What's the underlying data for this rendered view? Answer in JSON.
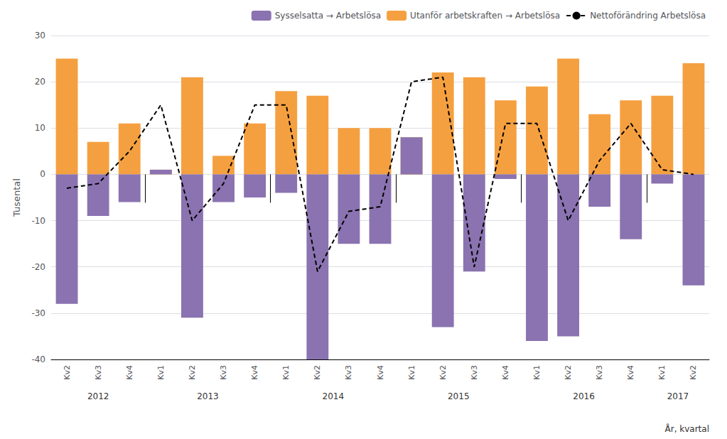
{
  "chart_data": {
    "type": "bar",
    "categories": [
      "Kv2",
      "Kv3",
      "Kv4",
      "Kv1",
      "Kv2",
      "Kv3",
      "Kv4",
      "Kv1",
      "Kv2",
      "Kv3",
      "Kv4",
      "Kv1",
      "Kv2",
      "Kv3",
      "Kv4",
      "Kv1",
      "Kv2",
      "Kv3",
      "Kv4",
      "Kv1",
      "Kv2"
    ],
    "year_groups": [
      {
        "year": "2012",
        "indices": [
          0,
          1,
          2
        ]
      },
      {
        "year": "2013",
        "indices": [
          3,
          4,
          5,
          6
        ]
      },
      {
        "year": "2014",
        "indices": [
          7,
          8,
          9,
          10
        ]
      },
      {
        "year": "2015",
        "indices": [
          11,
          12,
          13,
          14
        ]
      },
      {
        "year": "2016",
        "indices": [
          15,
          16,
          17,
          18
        ]
      },
      {
        "year": "2017",
        "indices": [
          19,
          20
        ]
      }
    ],
    "series": [
      {
        "name": "Sysselsatta → Arbetslösa",
        "type": "bar",
        "color": "#8A73B0",
        "values": [
          -28,
          -9,
          -6,
          1,
          -31,
          -6,
          -5,
          -4,
          -40,
          -15,
          -15,
          8,
          -33,
          -21,
          -1,
          -36,
          -35,
          -7,
          -14,
          -2,
          -24
        ]
      },
      {
        "name": "Utanför arbetskraften → Arbetslösa",
        "type": "bar",
        "color": "#F5A040",
        "values": [
          25,
          7,
          11,
          1,
          21,
          4,
          11,
          18,
          17,
          10,
          10,
          8,
          22,
          21,
          16,
          19,
          25,
          13,
          16,
          17,
          24
        ]
      },
      {
        "name": "Nettoförändring Arbetslösa",
        "type": "line",
        "line_style": "dashed",
        "color": "#000000",
        "values": [
          -3,
          -2,
          5,
          15,
          -10,
          -2,
          15,
          15,
          -21,
          -8,
          -7,
          20,
          21,
          -20,
          11,
          11,
          -10,
          3,
          11,
          1,
          0
        ]
      }
    ],
    "ylim": [
      -40,
      30
    ],
    "yticks": [
      -40,
      -30,
      -20,
      -10,
      0,
      10,
      20,
      30
    ],
    "ylabel": "Tusental",
    "xlabel": "År, kvartal",
    "grid": true,
    "legend": "upper right"
  }
}
